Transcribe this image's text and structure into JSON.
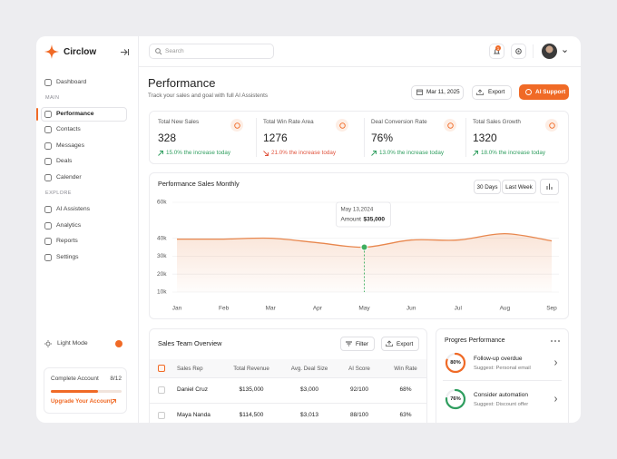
{
  "brand": "Circlow",
  "sidebar": {
    "top": "Dashboard",
    "main_label": "MAIN",
    "main_items": [
      "Performance",
      "Contacts",
      "Messages",
      "Deals",
      "Calender"
    ],
    "explore_label": "EXPLORE",
    "explore_items": [
      "AI Assistens",
      "Analytics",
      "Reports",
      "Settings"
    ],
    "theme": "Light Mode",
    "account": {
      "title": "Complete Account",
      "label": "8/12",
      "done": 8,
      "total": 12,
      "link": "Upgrade Your Account"
    }
  },
  "header": {
    "search": "Search",
    "notifications": "1"
  },
  "page": {
    "title": "Performance",
    "subtitle": "Track your sales and goal with full AI Assistents",
    "date": "Mar 11, 2025",
    "export": "Export",
    "ai": "AI Support"
  },
  "stats": [
    {
      "label": "Total New Sales",
      "value": "328",
      "change": "15.0% the increase today",
      "trend": "up"
    },
    {
      "label": "Total Win Rate Area",
      "value": "1276",
      "change": "21.0% the increase today",
      "trend": "down"
    },
    {
      "label": "Deal Conversion Rate",
      "value": "76%",
      "change": "13.0% the increase today",
      "trend": "up"
    },
    {
      "label": "Total Sales Growth",
      "value": "1320",
      "change": "18.0% the increase today",
      "trend": "up"
    }
  ],
  "chart_data": {
    "type": "line",
    "title": "Performance Sales Monthly",
    "buttons": [
      "30 Days",
      "Last Week"
    ],
    "categories": [
      "Jan",
      "Feb",
      "Mar",
      "Apr",
      "May",
      "Jun",
      "Jul",
      "Aug",
      "Sep"
    ],
    "values": [
      39500,
      39500,
      40000,
      37500,
      35000,
      39000,
      39000,
      42500,
      38500
    ],
    "color": "#e8874e",
    "ylim": [
      10000,
      60000
    ],
    "yticks": [
      {
        "value": 60000,
        "label": "60k"
      },
      {
        "value": 40000,
        "label": "40k"
      },
      {
        "value": 30000,
        "label": "30k"
      },
      {
        "value": 20000,
        "label": "20k"
      },
      {
        "value": 10000,
        "label": "10k"
      }
    ],
    "grid": true,
    "tooltip": {
      "date": "May 13,2024",
      "label": "Amount",
      "amount": "$35,000"
    }
  },
  "sales_table": {
    "title": "Sales Team Overview",
    "filter": "Filter",
    "export": "Export",
    "columns": [
      "Sales Rep",
      "Total Revenue",
      "Avg. Deal Size",
      "AI Score",
      "Win Rate"
    ],
    "rows": [
      [
        "Daniel Cruz",
        "$135,000",
        "$3,000",
        "92/100",
        "68%"
      ],
      [
        "Maya Nanda",
        "$114,500",
        "$3,013",
        "88/100",
        "63%"
      ]
    ]
  },
  "progress": {
    "title": "Progres Performance",
    "items": [
      {
        "value": 80,
        "label": "80%",
        "color": "#f06a26",
        "title": "Follow-up overdue",
        "note": "Suggest: Personal email"
      },
      {
        "value": 76,
        "label": "76%",
        "color": "#2f9e5f",
        "title": "Consider automation",
        "note": "Suggest: Discount offer"
      }
    ]
  }
}
